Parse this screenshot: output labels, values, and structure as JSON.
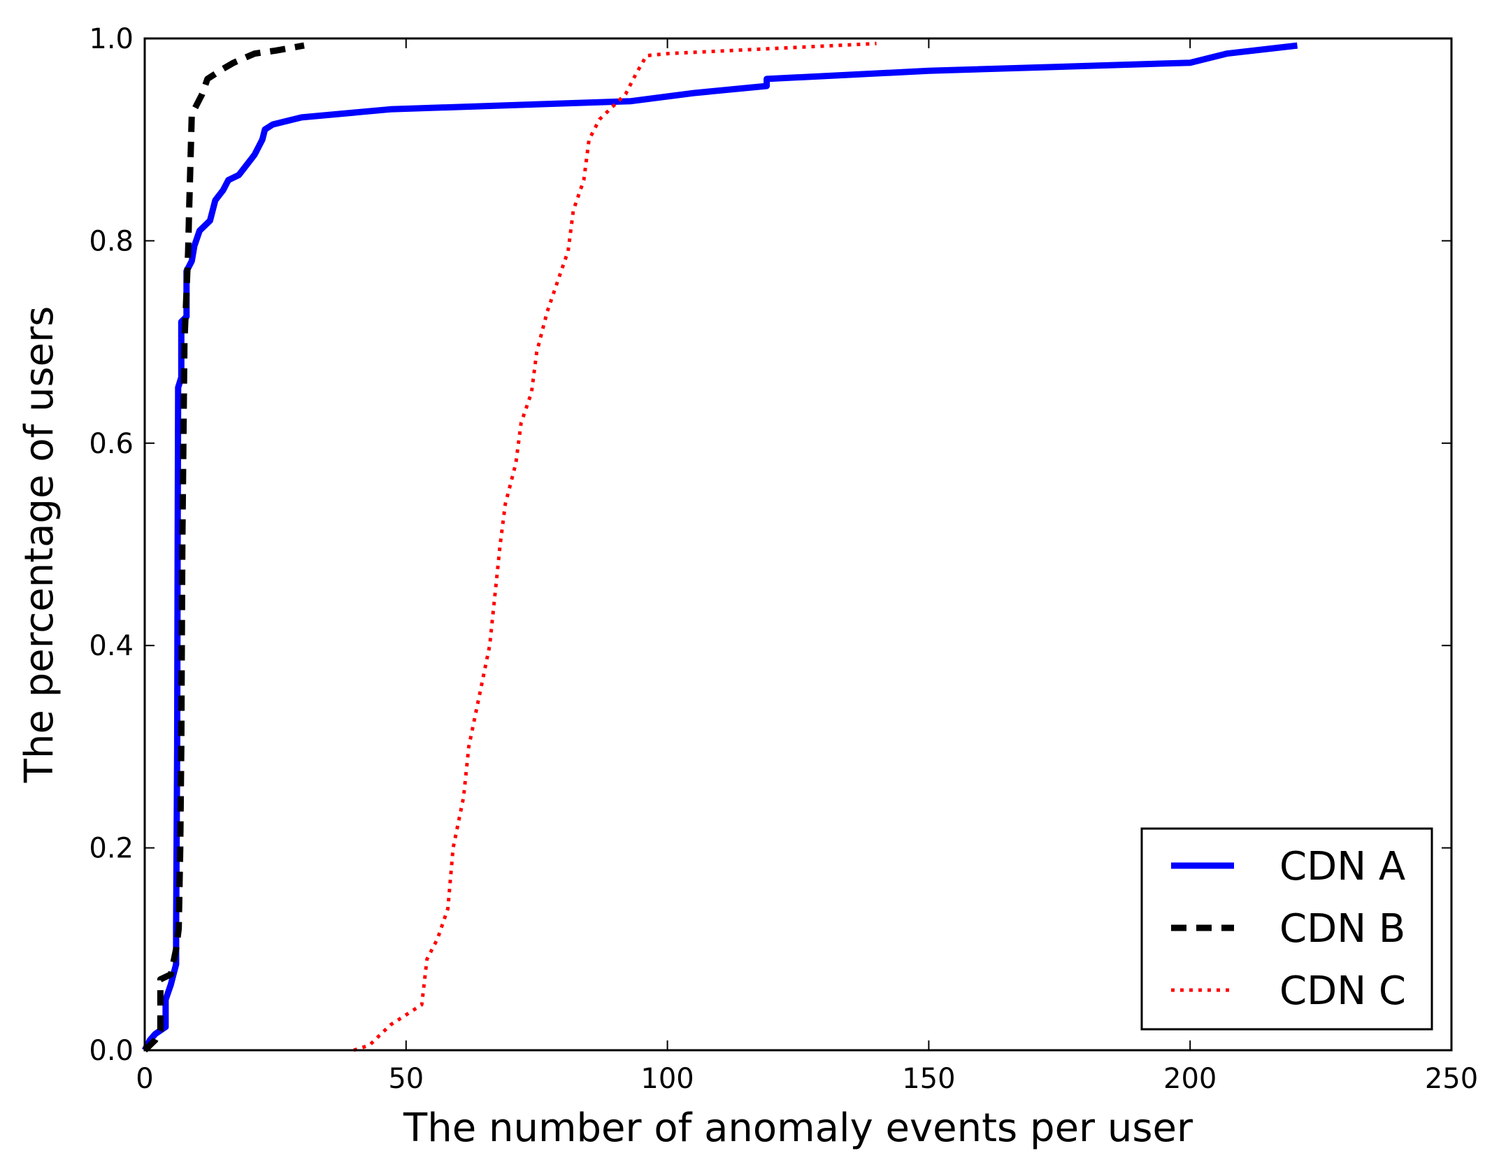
{
  "chart_data": {
    "type": "line",
    "title": "",
    "xlabel": "The number of anomaly events per user",
    "ylabel": "The percentage of users",
    "xlim": [
      0,
      250
    ],
    "ylim": [
      0,
      1.0
    ],
    "xticks": [
      0,
      50,
      100,
      150,
      200,
      250
    ],
    "yticks": [
      0.0,
      0.2,
      0.4,
      0.6,
      0.8,
      1.0
    ],
    "xtick_labels": [
      "0",
      "50",
      "100",
      "150",
      "200",
      "250"
    ],
    "ytick_labels": [
      "0.0",
      "0.2",
      "0.4",
      "0.6",
      "0.8",
      "1.0"
    ],
    "grid": false,
    "legend_position": "lower-right",
    "series": [
      {
        "name": "CDN A",
        "color": "#0000ff",
        "style": "solid",
        "points": [
          [
            0,
            0.0
          ],
          [
            1,
            0.01
          ],
          [
            2,
            0.016
          ],
          [
            4,
            0.023
          ],
          [
            4,
            0.05
          ],
          [
            5,
            0.065
          ],
          [
            5.5,
            0.075
          ],
          [
            6,
            0.085
          ],
          [
            6,
            0.12
          ],
          [
            6.2,
            0.3
          ],
          [
            6.3,
            0.5
          ],
          [
            6.4,
            0.655
          ],
          [
            7,
            0.665
          ],
          [
            7,
            0.72
          ],
          [
            8,
            0.725
          ],
          [
            8,
            0.77
          ],
          [
            9,
            0.78
          ],
          [
            9.5,
            0.795
          ],
          [
            10.5,
            0.81
          ],
          [
            12.5,
            0.82
          ],
          [
            13.5,
            0.84
          ],
          [
            15,
            0.85
          ],
          [
            16,
            0.86
          ],
          [
            18,
            0.865
          ],
          [
            19.5,
            0.875
          ],
          [
            21,
            0.885
          ],
          [
            22.5,
            0.9
          ],
          [
            23,
            0.91
          ],
          [
            24.5,
            0.915
          ],
          [
            30,
            0.922
          ],
          [
            47,
            0.93
          ],
          [
            93,
            0.938
          ],
          [
            105,
            0.946
          ],
          [
            119,
            0.953
          ],
          [
            119,
            0.96
          ],
          [
            150,
            0.968
          ],
          [
            200,
            0.976
          ],
          [
            207,
            0.985
          ],
          [
            220.5,
            0.993
          ]
        ]
      },
      {
        "name": "CDN B",
        "color": "#000000",
        "style": "dashed",
        "points": [
          [
            0,
            0.0
          ],
          [
            2,
            0.01
          ],
          [
            3,
            0.02
          ],
          [
            3,
            0.07
          ],
          [
            5,
            0.075
          ],
          [
            6,
            0.1
          ],
          [
            6.5,
            0.12
          ],
          [
            6.8,
            0.2
          ],
          [
            7,
            0.3
          ],
          [
            7.2,
            0.5
          ],
          [
            7.4,
            0.6
          ],
          [
            7.6,
            0.7
          ],
          [
            8,
            0.75
          ],
          [
            8.3,
            0.79
          ],
          [
            8.5,
            0.83
          ],
          [
            9,
            0.925
          ],
          [
            11,
            0.945
          ],
          [
            12,
            0.96
          ],
          [
            15,
            0.97
          ],
          [
            17,
            0.976
          ],
          [
            21,
            0.985
          ],
          [
            25,
            0.988
          ],
          [
            30.5,
            0.993
          ]
        ]
      },
      {
        "name": "CDN C",
        "color": "#ff0000",
        "style": "dotted",
        "points": [
          [
            40,
            0.0
          ],
          [
            43,
            0.005
          ],
          [
            45,
            0.015
          ],
          [
            47,
            0.025
          ],
          [
            50,
            0.035
          ],
          [
            53,
            0.045
          ],
          [
            54,
            0.09
          ],
          [
            56,
            0.11
          ],
          [
            58,
            0.14
          ],
          [
            59,
            0.2
          ],
          [
            61,
            0.25
          ],
          [
            62,
            0.3
          ],
          [
            64,
            0.35
          ],
          [
            66,
            0.4
          ],
          [
            67,
            0.45
          ],
          [
            68,
            0.5
          ],
          [
            69,
            0.54
          ],
          [
            71,
            0.58
          ],
          [
            72,
            0.62
          ],
          [
            74,
            0.65
          ],
          [
            75,
            0.69
          ],
          [
            77,
            0.73
          ],
          [
            79,
            0.76
          ],
          [
            81,
            0.79
          ],
          [
            82,
            0.83
          ],
          [
            84,
            0.86
          ],
          [
            85,
            0.9
          ],
          [
            87,
            0.92
          ],
          [
            90,
            0.935
          ],
          [
            92,
            0.945
          ],
          [
            94,
            0.965
          ],
          [
            96,
            0.983
          ],
          [
            100,
            0.985
          ],
          [
            120,
            0.99
          ],
          [
            140,
            0.995
          ]
        ]
      }
    ]
  }
}
